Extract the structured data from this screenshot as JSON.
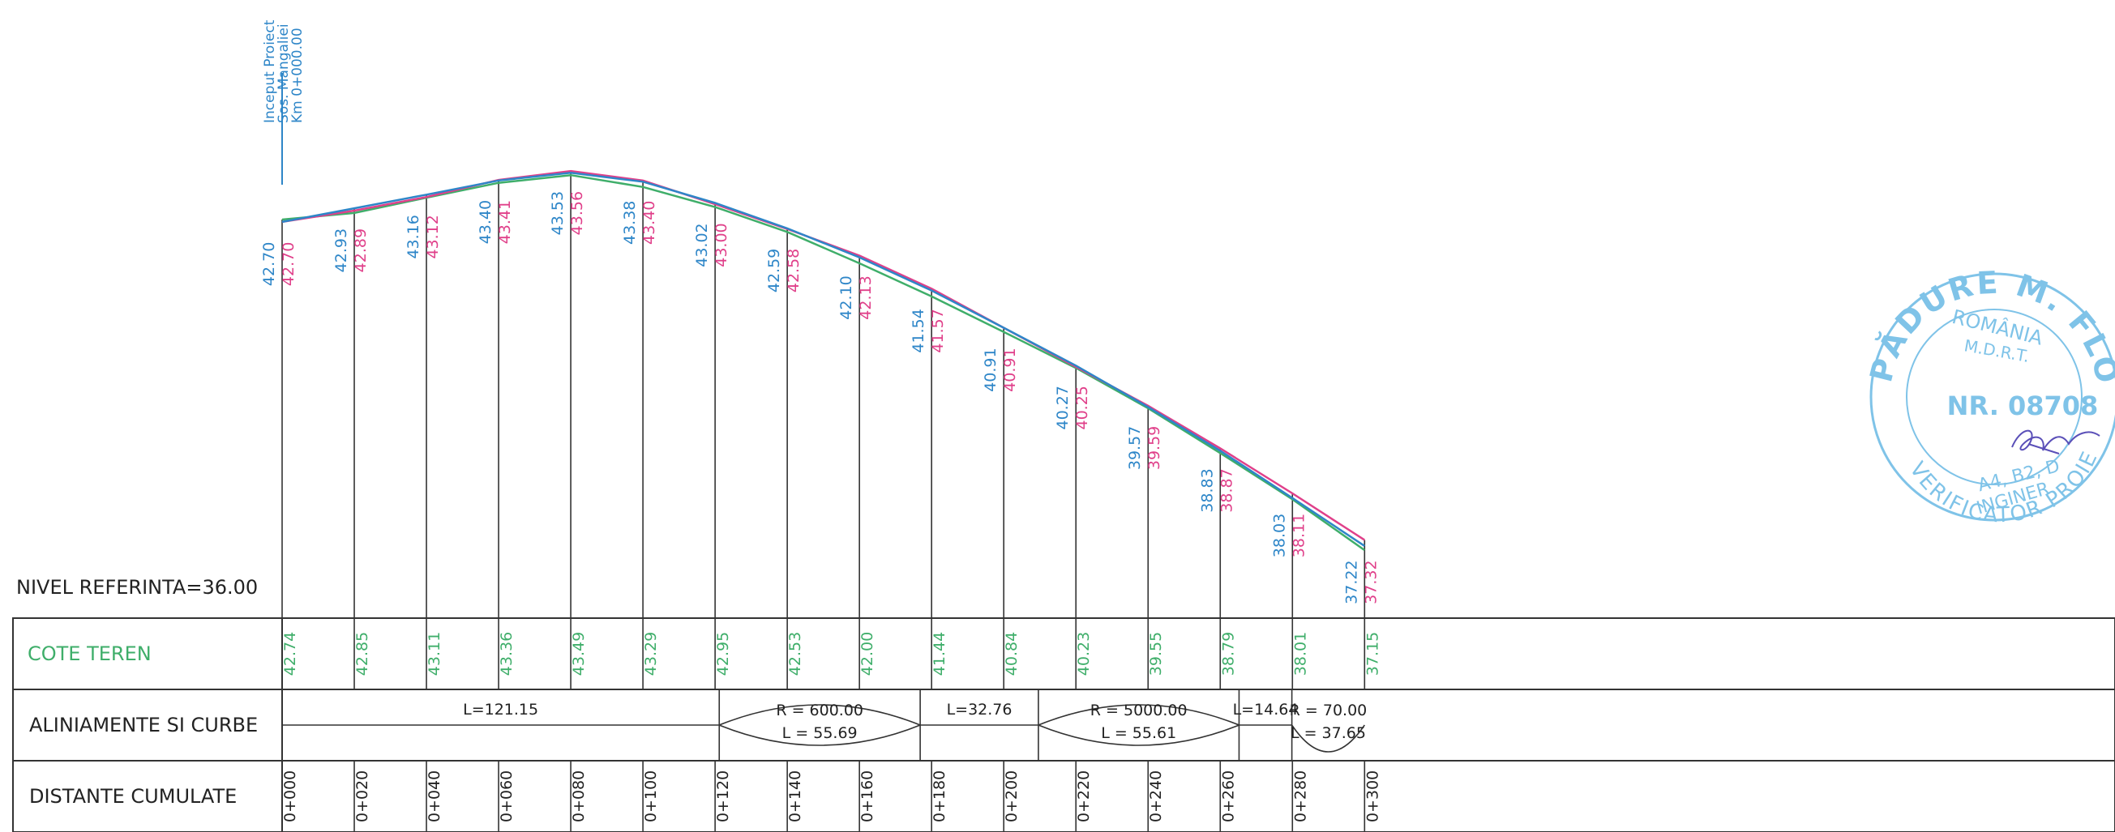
{
  "start_label": {
    "line1": "Inceput Proiect",
    "line2": "Sos. Mangaliei",
    "line3": "Km 0+000.00"
  },
  "reference_level": "NIVEL REFERINTA=36.00",
  "row_labels": {
    "ground": "COTE TEREN",
    "alignments": "ALINIAMENTE SI CURBE",
    "distances": "DISTANTE CUMULATE"
  },
  "colors": {
    "design": "#2E86C8",
    "red_line": "#E0408A",
    "terrain": "#3FAE6A",
    "frame": "#333333",
    "stamp": "#7FC3E8",
    "signature": "#5A4FB8"
  },
  "chart_data": {
    "type": "line",
    "reference_level": 36.0,
    "stations": [
      "0+000",
      "0+020",
      "0+040",
      "0+060",
      "0+080",
      "0+100",
      "0+120",
      "0+140",
      "0+160",
      "0+180",
      "0+200",
      "0+220",
      "0+240",
      "0+260",
      "0+280",
      "0+300"
    ],
    "chainage_m": [
      0,
      20,
      40,
      60,
      80,
      100,
      120,
      140,
      160,
      180,
      200,
      220,
      240,
      260,
      280,
      300
    ],
    "series": [
      {
        "values": [
          42.7,
          42.93,
          43.16,
          43.4,
          43.53,
          43.38,
          43.02,
          42.59,
          42.1,
          41.54,
          40.91,
          40.27,
          39.57,
          38.83,
          38.03,
          37.22
        ]
      },
      {
        "values": [
          42.7,
          42.89,
          43.12,
          43.41,
          43.56,
          43.4,
          43.0,
          42.58,
          42.13,
          41.57,
          40.91,
          40.25,
          39.59,
          38.87,
          38.11,
          37.32
        ]
      },
      {
        "values": [
          42.74,
          42.85,
          43.11,
          43.36,
          43.49,
          43.29,
          42.95,
          42.53,
          42.0,
          41.44,
          40.84,
          40.23,
          39.55,
          38.79,
          38.01,
          37.15
        ]
      }
    ],
    "design_labels": [
      "42.70",
      "42.93",
      "43.16",
      "43.40",
      "43.53",
      "43.38",
      "43.02",
      "42.59",
      "42.10",
      "41.54",
      "40.91",
      "40.27",
      "39.57",
      "38.83",
      "38.03",
      "37.22"
    ],
    "red_labels": [
      "42.70",
      "42.89",
      "43.12",
      "43.41",
      "43.56",
      "43.40",
      "43.00",
      "42.58",
      "42.13",
      "41.57",
      "40.91",
      "40.25",
      "39.59",
      "38.87",
      "38.11",
      "37.32"
    ],
    "ground_labels": [
      "42.74",
      "42.85",
      "43.11",
      "43.36",
      "43.49",
      "43.29",
      "42.95",
      "42.53",
      "42.00",
      "41.44",
      "40.84",
      "40.23",
      "39.55",
      "38.79",
      "38.01",
      "37.15"
    ],
    "alignments": [
      {
        "kind": "tangent",
        "start": 0,
        "end": 121.15,
        "label": "L=121.15"
      },
      {
        "kind": "curve",
        "start": 121.15,
        "end": 176.84,
        "label1": "R = 600.00",
        "label2": "L = 55.69"
      },
      {
        "kind": "tangent",
        "start": 176.84,
        "end": 209.6,
        "label": "L=32.76"
      },
      {
        "kind": "curve",
        "start": 209.6,
        "end": 265.21,
        "label1": "R = 5000.00",
        "label2": "L = 55.61"
      },
      {
        "kind": "tangent",
        "start": 265.21,
        "end": 279.85,
        "label": "L=14.64"
      },
      {
        "kind": "curve",
        "start": 279.85,
        "end": 300,
        "sag": true,
        "label1": "R = 70.00",
        "label2": "L = 37.65"
      }
    ]
  },
  "stamp": {
    "name": "PĂDURE M. FLORIN",
    "country": "ROMÂNIA",
    "ministry": "M.D.R.T.",
    "number": "NR. 08708",
    "grade": "A4, B2, D",
    "title": "INGINER",
    "role": "VERIFICATOR PROIECTE"
  }
}
